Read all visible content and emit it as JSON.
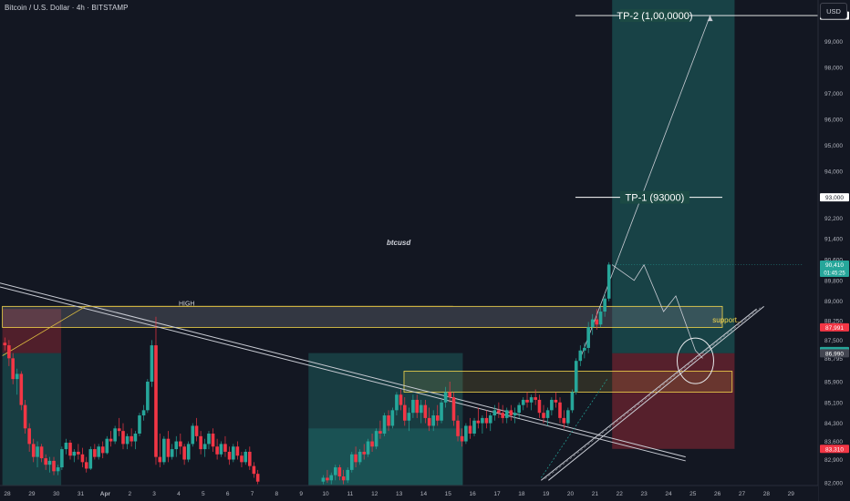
{
  "header": {
    "title": "Bitcoin / U.S. Dollar · 4h · BITSTAMP",
    "currency_button": "USD",
    "watermark": "btcusd"
  },
  "chart_data": {
    "type": "candlestick",
    "title": "Bitcoin / U.S. Dollar · 4h · BITSTAMP",
    "ylim": [
      81900,
      100600
    ],
    "y_ticks": [
      82000,
      82900,
      83600,
      84300,
      85100,
      85900,
      86795,
      87500,
      88250,
      89000,
      89800,
      90600,
      91400,
      92200,
      93000,
      94000,
      95000,
      96000,
      97000,
      98000,
      99000,
      100000
    ],
    "y_tick_labels": [
      "82,000",
      "82,900",
      "83,600",
      "84,300",
      "85,100",
      "85,900",
      "86,795",
      "87,500",
      "88,250",
      "89,000",
      "89,800",
      "90,600",
      "91,400",
      "92,200",
      "93,000",
      "94,000",
      "95,000",
      "96,000",
      "97,000",
      "98,000",
      "99,000",
      "100,000"
    ],
    "x_labels": [
      "28",
      "29",
      "30",
      "31",
      "Apr",
      "2",
      "3",
      "4",
      "5",
      "6",
      "7",
      "8",
      "9",
      "10",
      "11",
      "12",
      "13",
      "14",
      "15",
      "16",
      "17",
      "18",
      "19",
      "20",
      "21",
      "22",
      "23",
      "24",
      "25",
      "26",
      "27",
      "28",
      "29"
    ],
    "x_label_days": [
      0,
      1,
      2,
      3,
      4,
      5,
      6,
      7,
      8,
      9,
      10,
      11,
      12,
      13,
      14,
      15,
      16,
      17,
      18,
      19,
      20,
      21,
      22,
      23,
      24,
      25,
      26,
      27,
      28,
      29,
      30,
      31,
      32
    ],
    "price_badges": [
      {
        "value": "90,410",
        "sub": "01:45:25",
        "price": 90410,
        "color": "#26a69a"
      },
      {
        "value": "87,991",
        "price": 87991,
        "color": "#f23645"
      },
      {
        "value": "87,080",
        "price": 87080,
        "color": "#26a69a"
      },
      {
        "value": "86,990",
        "price": 86990,
        "color": "#434651"
      },
      {
        "value": "83,310",
        "price": 83310,
        "color": "#f23645"
      },
      {
        "value": "93,000",
        "price": 93000,
        "color": "#ffffff"
      },
      {
        "value": "100,000",
        "price": 100000,
        "color": "#ffffff"
      }
    ],
    "annotations": [
      {
        "text": "TP-2 (1,00,0000)",
        "price": 100000,
        "day": 25.1
      },
      {
        "text": "TP-1 (93000)",
        "price": 93000,
        "day": 25.1
      },
      {
        "text": "HIGH",
        "price": 88800,
        "day": 7.0
      },
      {
        "text": "support..",
        "price": 88150,
        "day": 28.8
      }
    ],
    "candles": [
      [
        -0.1,
        87400,
        87600,
        87100,
        87300
      ],
      [
        0.07,
        87300,
        87500,
        86500,
        86800
      ],
      [
        0.23,
        86800,
        87000,
        85800,
        86000
      ],
      [
        0.4,
        86000,
        86400,
        85400,
        86200
      ],
      [
        0.57,
        86200,
        86300,
        84800,
        85000
      ],
      [
        0.73,
        85000,
        85200,
        83900,
        84100
      ],
      [
        0.9,
        84100,
        84300,
        83200,
        83500
      ],
      [
        1.07,
        83500,
        83700,
        82800,
        83000
      ],
      [
        1.23,
        83000,
        83600,
        82600,
        83400
      ],
      [
        1.4,
        83400,
        83500,
        82800,
        82950
      ],
      [
        1.57,
        82950,
        83100,
        82500,
        82700
      ],
      [
        1.73,
        82700,
        83000,
        82400,
        82850
      ],
      [
        1.9,
        82850,
        83000,
        82300,
        82450
      ],
      [
        2.07,
        82450,
        82700,
        82300,
        82600
      ],
      [
        2.23,
        82600,
        83400,
        82500,
        83300
      ],
      [
        2.4,
        83300,
        83700,
        83100,
        83550
      ],
      [
        2.57,
        83550,
        83650,
        82900,
        83050
      ],
      [
        2.73,
        83050,
        83300,
        82800,
        83200
      ],
      [
        2.9,
        83200,
        83500,
        82900,
        83100
      ],
      [
        3.07,
        83100,
        83350,
        82600,
        82800
      ],
      [
        3.23,
        82800,
        83000,
        82400,
        82550
      ],
      [
        3.4,
        82550,
        83400,
        82500,
        83300
      ],
      [
        3.57,
        83300,
        83500,
        82900,
        83000
      ],
      [
        3.73,
        83000,
        83500,
        82900,
        83400
      ],
      [
        3.9,
        83400,
        83600,
        82950,
        83150
      ],
      [
        4.07,
        83150,
        83800,
        83100,
        83700
      ],
      [
        4.23,
        83700,
        84000,
        83400,
        83600
      ],
      [
        4.4,
        83600,
        84200,
        83500,
        84100
      ],
      [
        4.57,
        84100,
        84500,
        83800,
        84000
      ],
      [
        4.73,
        84000,
        84300,
        83300,
        83500
      ],
      [
        4.9,
        83500,
        83900,
        83300,
        83800
      ],
      [
        5.07,
        83800,
        84100,
        83400,
        83600
      ],
      [
        5.23,
        83600,
        84000,
        83300,
        83900
      ],
      [
        5.4,
        83900,
        84700,
        83800,
        84600
      ],
      [
        5.57,
        84600,
        85000,
        84400,
        84800
      ],
      [
        5.73,
        84800,
        86000,
        84700,
        85900
      ],
      [
        5.9,
        85900,
        87500,
        85700,
        87300
      ],
      [
        6.07,
        87300,
        88400,
        82700,
        83000
      ],
      [
        6.23,
        83000,
        83900,
        82600,
        82800
      ],
      [
        6.4,
        82800,
        83800,
        82700,
        83700
      ],
      [
        6.57,
        83700,
        84000,
        82800,
        83000
      ],
      [
        6.73,
        83000,
        83500,
        82900,
        83300
      ],
      [
        6.9,
        83300,
        83800,
        83000,
        83600
      ],
      [
        7.07,
        83600,
        83900,
        83100,
        83400
      ],
      [
        7.23,
        83400,
        83500,
        82700,
        82900
      ],
      [
        7.4,
        82900,
        83600,
        82800,
        83500
      ],
      [
        7.57,
        83500,
        84300,
        83400,
        84200
      ],
      [
        7.73,
        84200,
        84500,
        83600,
        83800
      ],
      [
        7.9,
        83800,
        84000,
        83100,
        83300
      ],
      [
        8.07,
        83300,
        83700,
        83000,
        83500
      ],
      [
        8.23,
        83500,
        84000,
        83300,
        83900
      ],
      [
        8.4,
        83900,
        84100,
        83200,
        83400
      ],
      [
        8.57,
        83400,
        83700,
        82900,
        83100
      ],
      [
        8.73,
        83100,
        83600,
        83000,
        83500
      ],
      [
        8.9,
        83500,
        83800,
        83000,
        83200
      ],
      [
        9.07,
        83200,
        83400,
        82700,
        82900
      ],
      [
        9.23,
        82900,
        83500,
        82800,
        83400
      ],
      [
        9.4,
        83400,
        83600,
        82900,
        83050
      ],
      [
        9.57,
        83050,
        83200,
        82600,
        82800
      ],
      [
        9.73,
        82800,
        83300,
        82700,
        83200
      ],
      [
        9.9,
        83200,
        83400,
        82500,
        82650
      ],
      [
        10.07,
        82650,
        82800,
        82200,
        82350
      ],
      [
        10.23,
        82350,
        82500,
        81950,
        82050
      ],
      [
        12.9,
        82050,
        82300,
        81950,
        82200
      ],
      [
        13.07,
        82200,
        82500,
        82000,
        82100
      ],
      [
        13.23,
        82100,
        82400,
        81950,
        82300
      ],
      [
        13.4,
        82300,
        82700,
        82100,
        82600
      ],
      [
        13.57,
        82600,
        82700,
        82100,
        82250
      ],
      [
        13.73,
        82250,
        82500,
        81950,
        82100
      ],
      [
        13.9,
        82100,
        82600,
        82000,
        82500
      ],
      [
        14.07,
        82500,
        83200,
        82400,
        83100
      ],
      [
        14.23,
        83100,
        83400,
        82600,
        82800
      ],
      [
        14.4,
        82800,
        83300,
        82700,
        83200
      ],
      [
        14.57,
        83200,
        83500,
        82900,
        83100
      ],
      [
        14.73,
        83100,
        83700,
        83000,
        83600
      ],
      [
        14.9,
        83600,
        83900,
        83200,
        83400
      ],
      [
        15.07,
        83400,
        84100,
        83300,
        84000
      ],
      [
        15.23,
        84000,
        84400,
        83700,
        83900
      ],
      [
        15.4,
        83900,
        84700,
        83800,
        84600
      ],
      [
        15.57,
        84600,
        84800,
        84000,
        84200
      ],
      [
        15.73,
        84200,
        84900,
        84100,
        84800
      ],
      [
        15.9,
        84800,
        85500,
        84600,
        85400
      ],
      [
        16.07,
        85400,
        85600,
        84800,
        85000
      ],
      [
        16.23,
        85000,
        85300,
        84200,
        84400
      ],
      [
        16.4,
        84400,
        84900,
        84000,
        84700
      ],
      [
        16.57,
        84700,
        85400,
        84500,
        85200
      ],
      [
        16.73,
        85200,
        85400,
        84500,
        84700
      ],
      [
        16.9,
        84700,
        85200,
        84300,
        85000
      ],
      [
        17.07,
        85000,
        85200,
        84300,
        84500
      ],
      [
        17.23,
        84500,
        84900,
        84000,
        84200
      ],
      [
        17.4,
        84200,
        84800,
        84000,
        84600
      ],
      [
        17.57,
        84600,
        85000,
        84200,
        84400
      ],
      [
        17.73,
        84400,
        85200,
        84300,
        85100
      ],
      [
        17.9,
        85100,
        85700,
        84900,
        85500
      ],
      [
        18.07,
        85500,
        85900,
        85100,
        85300
      ],
      [
        18.23,
        85300,
        85500,
        84200,
        84400
      ],
      [
        18.4,
        84400,
        84600,
        83600,
        83800
      ],
      [
        18.57,
        83800,
        84100,
        83400,
        83600
      ],
      [
        18.73,
        83600,
        84300,
        83500,
        84200
      ],
      [
        18.9,
        84200,
        84500,
        83700,
        83900
      ],
      [
        19.07,
        83900,
        84500,
        83800,
        84400
      ],
      [
        19.23,
        84400,
        84900,
        84100,
        84300
      ],
      [
        19.4,
        84300,
        84600,
        83900,
        84500
      ],
      [
        19.57,
        84500,
        84800,
        84100,
        84300
      ],
      [
        19.73,
        84300,
        84700,
        84000,
        84600
      ],
      [
        19.9,
        84600,
        85000,
        84400,
        84800
      ],
      [
        20.07,
        84800,
        85100,
        84500,
        84700
      ],
      [
        20.23,
        84700,
        85000,
        84300,
        84500
      ],
      [
        20.4,
        84500,
        84900,
        84300,
        84800
      ],
      [
        20.57,
        84800,
        85000,
        84400,
        84600
      ],
      [
        20.73,
        84600,
        84900,
        84300,
        84700
      ],
      [
        20.9,
        84700,
        85100,
        84500,
        85000
      ],
      [
        21.07,
        85000,
        85300,
        84800,
        85200
      ],
      [
        21.23,
        85200,
        85500,
        84900,
        85100
      ],
      [
        21.4,
        85100,
        85400,
        84800,
        85300
      ],
      [
        21.57,
        85300,
        85600,
        85000,
        85200
      ],
      [
        21.73,
        85200,
        85400,
        84500,
        84700
      ],
      [
        21.9,
        84700,
        85000,
        84300,
        84500
      ],
      [
        22.07,
        84500,
        84900,
        84200,
        84800
      ],
      [
        22.23,
        84800,
        85300,
        84600,
        85200
      ],
      [
        22.4,
        85200,
        85500,
        84900,
        85100
      ],
      [
        22.57,
        85100,
        85300,
        84300,
        84500
      ],
      [
        22.73,
        84500,
        84800,
        84100,
        84300
      ],
      [
        22.9,
        84300,
        84900,
        84200,
        84800
      ],
      [
        23.07,
        84800,
        85600,
        84700,
        85500
      ],
      [
        23.23,
        85500,
        86800,
        85400,
        86700
      ],
      [
        23.4,
        86700,
        87300,
        86500,
        87100
      ],
      [
        23.57,
        87100,
        87400,
        86800,
        87200
      ],
      [
        23.73,
        87200,
        88200,
        87000,
        88000
      ],
      [
        23.9,
        88000,
        88500,
        87700,
        88300
      ],
      [
        24.07,
        88300,
        88700,
        87900,
        88100
      ],
      [
        24.23,
        88100,
        88800,
        88000,
        88600
      ],
      [
        24.4,
        88600,
        89300,
        88400,
        89100
      ],
      [
        24.57,
        89100,
        90500,
        89000,
        90410
      ]
    ],
    "zones": [
      {
        "name": "left-stop-zone",
        "from_day": -0.2,
        "to_day": 2.2,
        "low": 87000,
        "high": 88700,
        "color": "#f23645",
        "opacity": 0.28
      },
      {
        "name": "left-target-zone",
        "from_day": -0.2,
        "to_day": 2.2,
        "low": 81900,
        "high": 87000,
        "color": "#26a69a",
        "opacity": 0.28
      },
      {
        "name": "mid-target-zone",
        "from_day": 12.3,
        "to_day": 18.6,
        "low": 81900,
        "high": 87000,
        "color": "#26a69a",
        "opacity": 0.26
      },
      {
        "name": "mid-target-inner",
        "from_day": 12.3,
        "to_day": 18.6,
        "low": 81900,
        "high": 84100,
        "color": "#26a69a",
        "opacity": 0.22
      },
      {
        "name": "tp-zone",
        "from_day": 24.7,
        "to_day": 29.7,
        "low": 86995,
        "high": 100600,
        "color": "#26a69a",
        "opacity": 0.3
      },
      {
        "name": "stop-zone",
        "from_day": 24.7,
        "to_day": 29.7,
        "low": 83310,
        "high": 86995,
        "color": "#f23645",
        "opacity": 0.3
      },
      {
        "name": "resistance-band",
        "from_day": -0.2,
        "to_day": 29.2,
        "low": 87991,
        "high": 88800,
        "color": "#787b86",
        "opacity": 0.32,
        "stroke": "#f7d94c"
      },
      {
        "name": "support-box",
        "from_day": 16.2,
        "to_day": 29.6,
        "low": 85500,
        "high": 86300,
        "color": "#f7d94c",
        "opacity": 0.12,
        "stroke": "#f7d94c"
      }
    ]
  }
}
